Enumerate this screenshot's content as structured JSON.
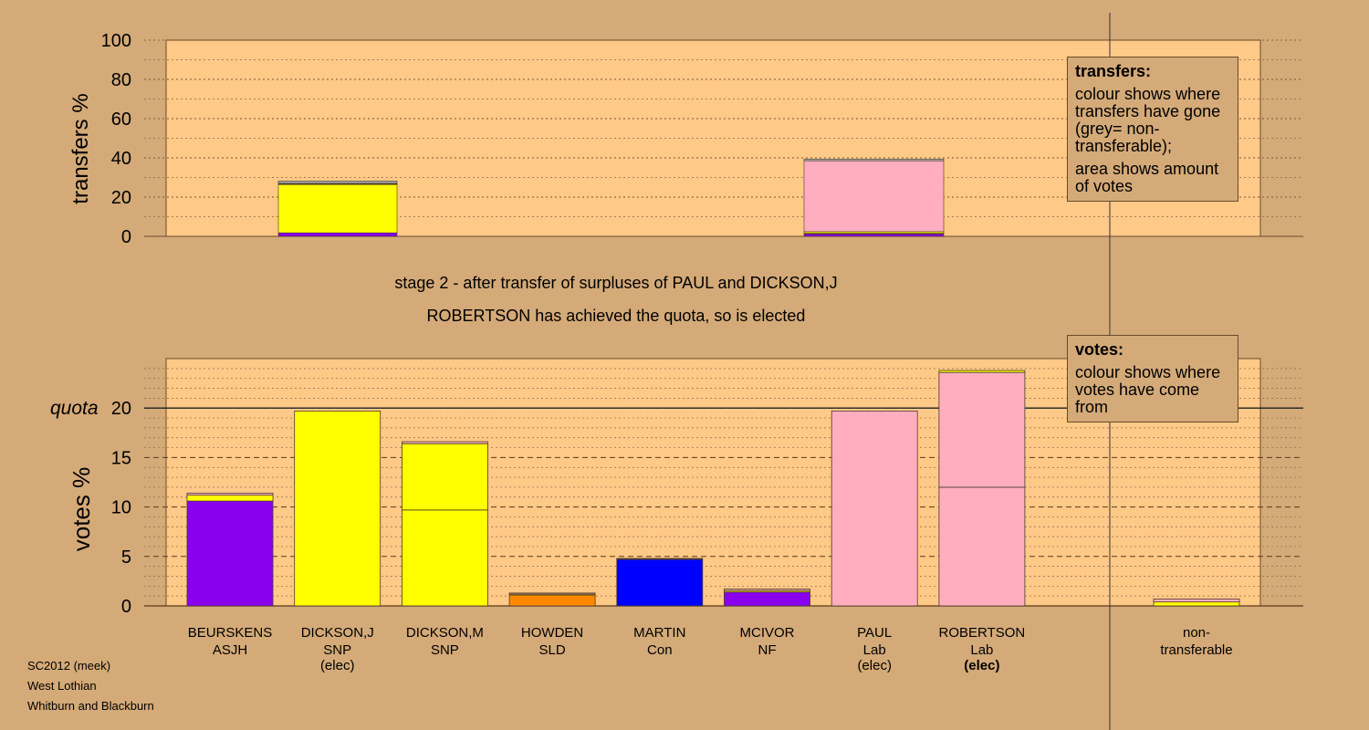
{
  "stage_lines": [
    "stage 2 - after transfer of surpluses of PAUL and DICKSON,J",
    "ROBERTSON has achieved the quota, so is elected"
  ],
  "legend_transfers": {
    "title": "transfers:",
    "para1": "colour shows where transfers have gone (grey= non-transferable);",
    "para2": "area shows amount of votes"
  },
  "legend_votes": {
    "title": "votes:",
    "para1": "colour shows where votes have come from"
  },
  "captions": [
    "SC2012 (meek)",
    "West Lothian",
    "Whitburn and Blackburn"
  ],
  "colors": {
    "background": "#d4aa78",
    "plot_area": "#ffc987",
    "ASJH": "#8800ee",
    "SNP": "#ffff00",
    "SLD": "#ff8800",
    "Con": "#0000ff",
    "NF": "#8800ee",
    "Lab": "#ffaec0",
    "non_transferable": "#aaaaaa"
  },
  "chart_data": [
    {
      "type": "bar",
      "name": "transfers",
      "ylabel": "transfers %",
      "ylim": [
        0,
        100
      ],
      "yticks": [
        0,
        20,
        40,
        60,
        80,
        100
      ],
      "grid": true,
      "stacks": [
        {
          "source": "DICKSON,J",
          "segments": [
            {
              "to": "MCIVOR",
              "party": "NF",
              "value": 1.8
            },
            {
              "to": "DICKSON,M",
              "party": "SNP",
              "value": 24.6
            },
            {
              "to": "BEURSKENS",
              "party": "ASJH",
              "value": 0.3
            },
            {
              "to": "HOWDEN",
              "party": "SLD",
              "value": 0.2
            },
            {
              "to": "MARTIN",
              "party": "Con",
              "value": 0.1
            },
            {
              "to": "non-transferable",
              "party": "grey",
              "value": 1.2
            }
          ]
        },
        {
          "source": "PAUL",
          "segments": [
            {
              "to": "MCIVOR",
              "party": "NF",
              "value": 1.2
            },
            {
              "to": "HOWDEN",
              "party": "SLD",
              "value": 0.4
            },
            {
              "to": "DICKSON,M",
              "party": "SNP",
              "value": 0.8
            },
            {
              "to": "ROBERTSON",
              "party": "Lab",
              "value": 36.1
            },
            {
              "to": "non-transferable",
              "party": "grey",
              "value": 0.9
            }
          ]
        }
      ]
    },
    {
      "type": "bar",
      "name": "votes",
      "ylabel": "votes %",
      "ylim": [
        0,
        25
      ],
      "yticks": [
        0,
        5,
        10,
        15,
        20
      ],
      "quota": 20,
      "quota_label": "quota",
      "grid": true,
      "categories": [
        {
          "name": "BEURSKENS",
          "party": "ASJH",
          "note": "",
          "bold_note": false,
          "segments": [
            {
              "from": "ASJH",
              "value": 10.6
            },
            {
              "from": "SNP",
              "value": 0.6
            },
            {
              "from": "Lab",
              "value": 0.2
            }
          ]
        },
        {
          "name": "DICKSON,J",
          "party": "SNP",
          "note": "(elec)",
          "bold_note": false,
          "segments": [
            {
              "from": "SNP",
              "value": 19.7
            }
          ]
        },
        {
          "name": "DICKSON,M",
          "party": "SNP",
          "note": "",
          "bold_note": false,
          "segments": [
            {
              "from": "SNP",
              "value": 9.7
            },
            {
              "from": "SNP",
              "value": 6.7
            },
            {
              "from": "Lab",
              "value": 0.2
            }
          ]
        },
        {
          "name": "HOWDEN",
          "party": "SLD",
          "note": "",
          "bold_note": false,
          "segments": [
            {
              "from": "SLD",
              "value": 1.1
            },
            {
              "from": "SNP",
              "value": 0.1
            },
            {
              "from": "Lab",
              "value": 0.1
            }
          ]
        },
        {
          "name": "MARTIN",
          "party": "Con",
          "note": "",
          "bold_note": false,
          "segments": [
            {
              "from": "Con",
              "value": 4.7
            },
            {
              "from": "SNP",
              "value": 0.05
            },
            {
              "from": "Lab",
              "value": 0.05
            }
          ]
        },
        {
          "name": "MCIVOR",
          "party": "NF",
          "note": "",
          "bold_note": false,
          "segments": [
            {
              "from": "NF",
              "value": 1.4
            },
            {
              "from": "SNP",
              "value": 0.15
            },
            {
              "from": "Lab",
              "value": 0.15
            }
          ]
        },
        {
          "name": "PAUL",
          "party": "Lab",
          "note": "(elec)",
          "bold_note": false,
          "segments": [
            {
              "from": "Lab",
              "value": 19.7
            }
          ]
        },
        {
          "name": "ROBERTSON",
          "party": "Lab",
          "note": "(elec)",
          "bold_note": true,
          "segments": [
            {
              "from": "Lab",
              "value": 12.0
            },
            {
              "from": "Lab",
              "value": 11.6
            },
            {
              "from": "SNP",
              "value": 0.2
            }
          ]
        }
      ],
      "non_transferable": {
        "label_line1": "non-",
        "label_line2": "transferable",
        "segments": [
          {
            "from": "SNP",
            "value": 0.4
          },
          {
            "from": "Lab",
            "value": 0.3
          }
        ]
      }
    }
  ]
}
